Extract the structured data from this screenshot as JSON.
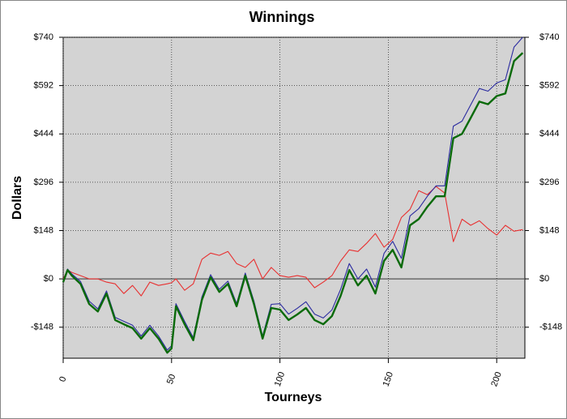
{
  "chart_data": {
    "type": "line",
    "title": "Winnings",
    "xlabel": "Tourneys",
    "ylabel": "Dollars",
    "x": [
      0,
      2,
      4,
      8,
      12,
      16,
      20,
      24,
      28,
      32,
      36,
      40,
      44,
      48,
      50,
      52,
      56,
      60,
      64,
      68,
      72,
      76,
      80,
      84,
      88,
      92,
      96,
      100,
      104,
      108,
      112,
      116,
      120,
      124,
      128,
      132,
      136,
      140,
      144,
      148,
      152,
      156,
      160,
      164,
      168,
      172,
      176,
      180,
      184,
      188,
      192,
      196,
      200,
      204,
      208,
      212
    ],
    "series": [
      {
        "color": "#e83030",
        "values": [
          0,
          27,
          20,
          10,
          0,
          0,
          -10,
          -15,
          -45,
          -20,
          -52,
          -10,
          -20,
          -15,
          -12,
          0,
          -35,
          -15,
          60,
          79,
          72,
          84,
          47,
          35,
          60,
          0,
          35,
          10,
          5,
          10,
          5,
          -27,
          -10,
          10,
          55,
          89,
          84,
          109,
          139,
          97,
          121,
          188,
          213,
          270,
          258,
          283,
          263,
          114,
          183,
          164,
          178,
          154,
          134,
          164,
          146,
          151
        ]
      },
      {
        "color": "#2a2aa0",
        "values": [
          -5,
          30,
          15,
          -8,
          -68,
          -92,
          -37,
          -118,
          -130,
          -142,
          -175,
          -142,
          -175,
          -218,
          -205,
          -76,
          -130,
          -180,
          -55,
          13,
          -32,
          -7,
          -76,
          18,
          -68,
          -175,
          -78,
          -76,
          -108,
          -90,
          -70,
          -108,
          -120,
          -95,
          -32,
          47,
          0,
          30,
          -25,
          78,
          115,
          63,
          193,
          215,
          253,
          285,
          285,
          468,
          483,
          533,
          583,
          575,
          600,
          610,
          710,
          740
        ]
      },
      {
        "color": "#0a6a0a",
        "values": [
          -10,
          27,
          10,
          -15,
          -77,
          -100,
          -45,
          -126,
          -139,
          -151,
          -183,
          -151,
          -183,
          -226,
          -213,
          -84,
          -139,
          -188,
          -64,
          5,
          -40,
          -15,
          -84,
          10,
          -77,
          -183,
          -89,
          -94,
          -126,
          -109,
          -89,
          -126,
          -139,
          -114,
          -52,
          27,
          -20,
          10,
          -45,
          55,
          89,
          35,
          164,
          183,
          221,
          253,
          253,
          431,
          444,
          493,
          543,
          535,
          560,
          568,
          667,
          692
        ]
      }
    ],
    "xlim": [
      0,
      213
    ],
    "xticks": [
      0,
      50,
      100,
      150,
      200
    ],
    "ylim": [
      -243,
      740
    ],
    "yticks": [
      {
        "value": -148,
        "label": "-$148"
      },
      {
        "value": 0,
        "label": "$0"
      },
      {
        "value": 148,
        "label": "$148"
      },
      {
        "value": 296,
        "label": "$296"
      },
      {
        "value": 444,
        "label": "$444"
      },
      {
        "value": 592,
        "label": "$592"
      },
      {
        "value": 740,
        "label": "$740"
      }
    ],
    "y2lim": [
      -243,
      740
    ],
    "y2ticks": [
      {
        "value": -148,
        "label": "-$148"
      },
      {
        "value": 0,
        "label": "$0"
      },
      {
        "value": 148,
        "label": "$148"
      },
      {
        "value": 296,
        "label": "$296"
      },
      {
        "value": 444,
        "label": "$444"
      },
      {
        "value": 592,
        "label": "$592"
      },
      {
        "value": 740,
        "label": "$740"
      }
    ],
    "grid": true
  }
}
